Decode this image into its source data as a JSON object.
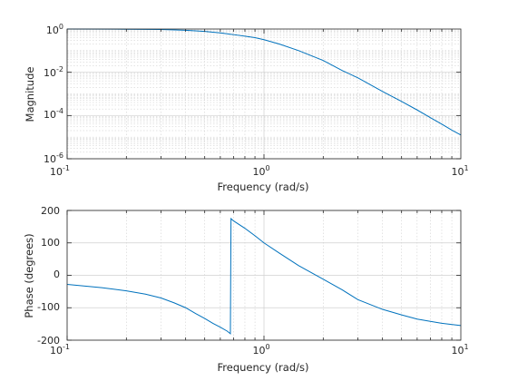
{
  "chart_data": [
    {
      "type": "line",
      "name": "magnitude-plot",
      "xlabel": "Frequency (rad/s)",
      "ylabel": "Magnitude",
      "xscale": "log",
      "yscale": "log",
      "xlim": [
        0.1,
        10
      ],
      "ylim": [
        1e-06,
        1
      ],
      "x_ticks": [
        {
          "base": "10",
          "exp": "-1"
        },
        {
          "base": "10",
          "exp": "0"
        },
        {
          "base": "10",
          "exp": "1"
        }
      ],
      "y_ticks": [
        {
          "base": "10",
          "exp": "0"
        },
        {
          "base": "10",
          "exp": "-2"
        },
        {
          "base": "10",
          "exp": "-4"
        },
        {
          "base": "10",
          "exp": "-6"
        }
      ],
      "grid": true,
      "line_color": "#0072bd",
      "series": [
        {
          "x": [
            0.1,
            0.2,
            0.3,
            0.4,
            0.5,
            0.6,
            0.7,
            0.8,
            0.9,
            1.0,
            1.2,
            1.5,
            2.0,
            2.5,
            3.0,
            4.0,
            5.0,
            6.0,
            7.0,
            8.0,
            9.0,
            10.0
          ],
          "values": [
            1.0,
            0.98,
            0.95,
            0.88,
            0.78,
            0.66,
            0.55,
            0.47,
            0.4,
            0.32,
            0.2,
            0.1,
            0.035,
            0.012,
            0.0055,
            0.0013,
            0.00045,
            0.00018,
            8e-05,
            4e-05,
            2.1e-05,
            1.25e-05
          ]
        }
      ]
    },
    {
      "type": "line",
      "name": "phase-plot",
      "xlabel": "Frequency (rad/s)",
      "ylabel": "Phase (degrees)",
      "xscale": "log",
      "yscale": "linear",
      "xlim": [
        0.1,
        10
      ],
      "ylim": [
        -200,
        200
      ],
      "x_ticks": [
        {
          "base": "10",
          "exp": "-1"
        },
        {
          "base": "10",
          "exp": "0"
        },
        {
          "base": "10",
          "exp": "1"
        }
      ],
      "y_ticks": [
        "200",
        "100",
        "0",
        "-100",
        "-200"
      ],
      "y_tick_values": [
        200,
        100,
        0,
        -100,
        -200
      ],
      "grid": true,
      "line_color": "#0072bd",
      "series": [
        {
          "x": [
            0.1,
            0.15,
            0.2,
            0.25,
            0.3,
            0.35,
            0.4,
            0.45,
            0.5,
            0.55,
            0.6,
            0.65,
            0.675,
            0.68,
            0.7,
            0.8,
            0.9,
            1.0,
            1.2,
            1.5,
            2.0,
            2.5,
            3.0,
            4.0,
            5.0,
            6.0,
            7.0,
            8.0,
            10.0
          ],
          "values": [
            -28,
            -38,
            -48,
            -58,
            -70,
            -85,
            -100,
            -118,
            -133,
            -148,
            -160,
            -172,
            -180,
            175,
            168,
            145,
            122,
            100,
            68,
            30,
            -12,
            -45,
            -75,
            -105,
            -122,
            -135,
            -142,
            -148,
            -155
          ]
        }
      ]
    }
  ]
}
